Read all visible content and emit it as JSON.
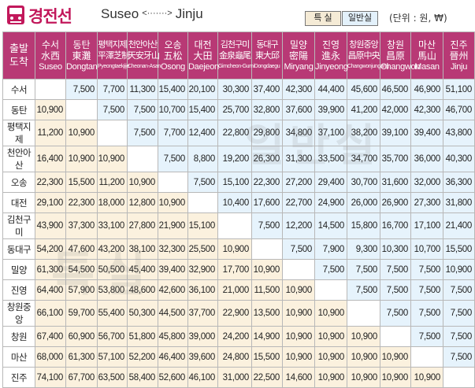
{
  "title": {
    "line_name": "경전선",
    "origin": "Suseo",
    "arrow": "<·······>",
    "destination": "Jinju"
  },
  "legend": {
    "special_label": "특 실",
    "general_label": "일반실"
  },
  "unit_note": "(단위 : 원, ₩)",
  "corner": {
    "line1": "출발",
    "line2": "도착"
  },
  "colors": {
    "header": "#b83975",
    "special_cell": "#fbf1de",
    "general_cell": "#e6f3fc",
    "title": "#c2185b"
  },
  "stations": [
    {
      "ko": "수서",
      "hj": "水西",
      "en": "Suseo",
      "row": "수서"
    },
    {
      "ko": "동탄",
      "hj": "東灘",
      "en": "Dongtan",
      "row": "동탄"
    },
    {
      "ko": "평택지제",
      "hj": "平澤芝制",
      "en": "Pyeongtaekjije",
      "row": "평택지제"
    },
    {
      "ko": "천안아산",
      "hj": "天安牙山",
      "en": "Cheonan-Asan",
      "row": "천안아산"
    },
    {
      "ko": "오송",
      "hj": "五松",
      "en": "Osong",
      "row": "오송"
    },
    {
      "ko": "대전",
      "hj": "大田",
      "en": "Daejeon",
      "row": "대전"
    },
    {
      "ko": "김천구미",
      "hj": "金泉龜尾",
      "en": "Gimcheon-Gumi",
      "row": "김천구미"
    },
    {
      "ko": "동대구",
      "hj": "東大邱",
      "en": "Dongdaegu",
      "row": "동대구"
    },
    {
      "ko": "밀양",
      "hj": "密陽",
      "en": "Miryang",
      "row": "밀양"
    },
    {
      "ko": "진영",
      "hj": "進永",
      "en": "Jinyeong",
      "row": "진영"
    },
    {
      "ko": "창원중앙",
      "hj": "昌原中央",
      "en": "Changwonjungang",
      "row": "창원중앙"
    },
    {
      "ko": "창원",
      "hj": "昌原",
      "en": "Changwon",
      "row": "창원"
    },
    {
      "ko": "마산",
      "hj": "馬山",
      "en": "Masan",
      "row": "마산"
    },
    {
      "ko": "진주",
      "hj": "晉州",
      "en": "Jinju",
      "row": "진주"
    }
  ],
  "fares": [
    [
      "",
      "7,500",
      "7,700",
      "11,300",
      "15,400",
      "20,100",
      "30,300",
      "37,400",
      "42,300",
      "44,400",
      "45,600",
      "46,500",
      "46,900",
      "51,100"
    ],
    [
      "10,900",
      "",
      "7,500",
      "7,500",
      "10,700",
      "15,400",
      "25,700",
      "32,800",
      "37,600",
      "39,900",
      "41,200",
      "42,000",
      "42,300",
      "46,700"
    ],
    [
      "11,200",
      "10,900",
      "",
      "7,500",
      "7,700",
      "12,400",
      "22,800",
      "29,800",
      "34,800",
      "37,100",
      "38,200",
      "39,100",
      "39,400",
      "43,800"
    ],
    [
      "16,400",
      "10,900",
      "10,900",
      "",
      "7,500",
      "8,800",
      "19,200",
      "26,300",
      "31,300",
      "33,500",
      "34,700",
      "35,700",
      "36,000",
      "40,300"
    ],
    [
      "22,300",
      "15,500",
      "11,200",
      "10,900",
      "",
      "7,500",
      "15,100",
      "22,300",
      "27,200",
      "29,400",
      "30,700",
      "31,600",
      "32,000",
      "36,300"
    ],
    [
      "29,100",
      "22,300",
      "18,000",
      "12,800",
      "10,900",
      "",
      "10,400",
      "17,600",
      "22,700",
      "24,900",
      "26,000",
      "26,900",
      "27,300",
      "31,800"
    ],
    [
      "43,900",
      "37,300",
      "33,100",
      "27,800",
      "21,900",
      "15,100",
      "",
      "7,500",
      "12,200",
      "14,500",
      "15,800",
      "16,700",
      "17,100",
      "21,400"
    ],
    [
      "54,200",
      "47,600",
      "43,200",
      "38,100",
      "32,300",
      "25,500",
      "10,900",
      "",
      "7,500",
      "7,900",
      "9,300",
      "10,300",
      "10,700",
      "15,500"
    ],
    [
      "61,300",
      "54,500",
      "50,500",
      "45,400",
      "39,400",
      "32,900",
      "17,700",
      "10,900",
      "",
      "7,500",
      "7,500",
      "7,500",
      "7,500",
      "10,900"
    ],
    [
      "64,400",
      "57,900",
      "53,800",
      "48,600",
      "42,600",
      "36,100",
      "21,000",
      "11,500",
      "10,900",
      "",
      "7,500",
      "7,500",
      "7,500",
      "7,500"
    ],
    [
      "66,100",
      "59,700",
      "55,400",
      "50,300",
      "44,500",
      "37,700",
      "22,900",
      "13,500",
      "10,900",
      "10,900",
      "",
      "7,500",
      "7,500",
      "7,500"
    ],
    [
      "67,400",
      "60,900",
      "56,700",
      "51,800",
      "45,800",
      "39,000",
      "24,200",
      "14,900",
      "10,900",
      "10,900",
      "10,900",
      "",
      "7,500",
      "7,500"
    ],
    [
      "68,000",
      "61,300",
      "57,100",
      "52,200",
      "46,400",
      "39,600",
      "24,800",
      "15,500",
      "10,900",
      "10,900",
      "10,900",
      "10,900",
      "",
      "7,500"
    ],
    [
      "74,100",
      "67,700",
      "63,500",
      "58,400",
      "52,600",
      "46,100",
      "31,000",
      "22,500",
      "14,600",
      "10,900",
      "10,900",
      "10,900",
      "10,900",
      ""
    ]
  ],
  "watermarks": {
    "general": "일반실",
    "special": "특실"
  }
}
